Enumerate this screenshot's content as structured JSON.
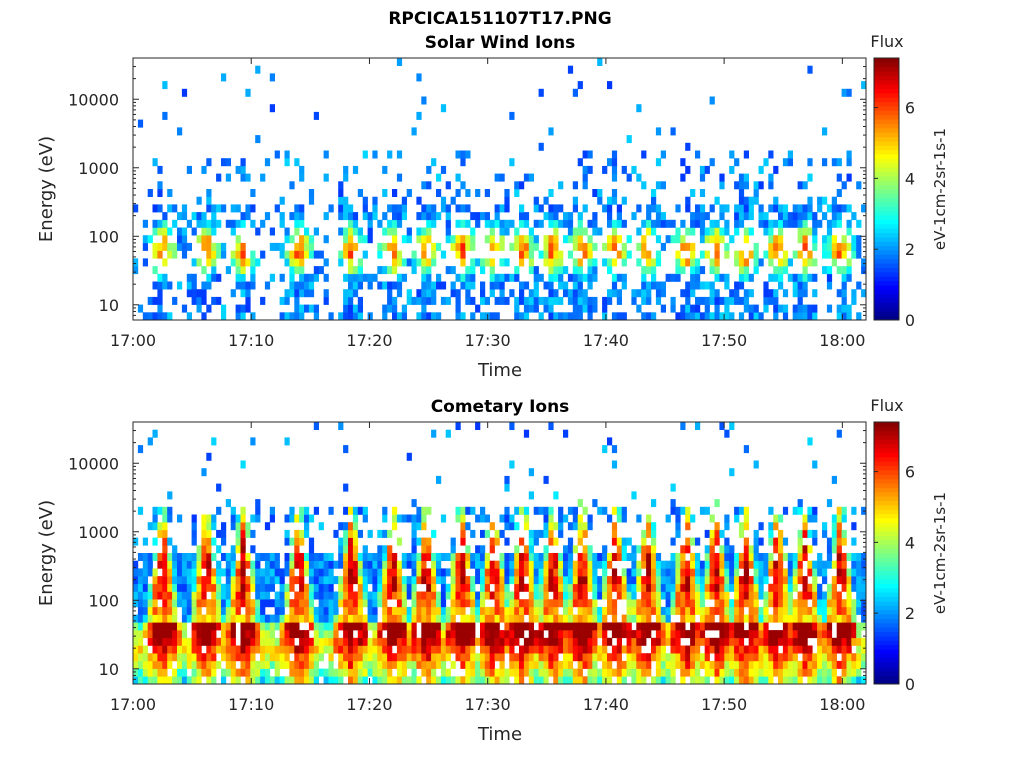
{
  "figure_title": "RPCICA151107T17.PNG",
  "colormap_stops": [
    "#000080",
    "#0000ff",
    "#0080ff",
    "#00ffff",
    "#80ff80",
    "#ffff00",
    "#ff8000",
    "#ff0000",
    "#800000"
  ],
  "chart_data": [
    {
      "type": "heatmap",
      "title": "Solar Wind Ions",
      "xlabel": "Time",
      "ylabel": "Energy (eV)",
      "x_ticks": [
        "17:00",
        "17:10",
        "17:20",
        "17:30",
        "17:40",
        "17:50",
        "18:00"
      ],
      "x_range_minutes": [
        0,
        62
      ],
      "y_scale": "log",
      "y_ticks": [
        10,
        100,
        1000,
        10000
      ],
      "y_range": [
        6,
        40000
      ],
      "colorbar_label": "Flux",
      "colorbar_units": "eV-1cm-2sr-1s-1",
      "colorbar_ticks": [
        0,
        2,
        4,
        6
      ],
      "colorbar_range": [
        0,
        7.4
      ],
      "activity": "sparse"
    },
    {
      "type": "heatmap",
      "title": "Cometary Ions",
      "xlabel": "Time",
      "ylabel": "Energy (eV)",
      "x_ticks": [
        "17:00",
        "17:10",
        "17:20",
        "17:30",
        "17:40",
        "17:50",
        "18:00"
      ],
      "x_range_minutes": [
        0,
        62
      ],
      "y_scale": "log",
      "y_ticks": [
        10,
        100,
        1000,
        10000
      ],
      "y_range": [
        6,
        40000
      ],
      "colorbar_label": "Flux",
      "colorbar_units": "eV-1cm-2sr-1s-1",
      "colorbar_ticks": [
        0,
        2,
        4,
        6
      ],
      "colorbar_range": [
        0,
        7.4
      ],
      "activity": "dense"
    }
  ]
}
